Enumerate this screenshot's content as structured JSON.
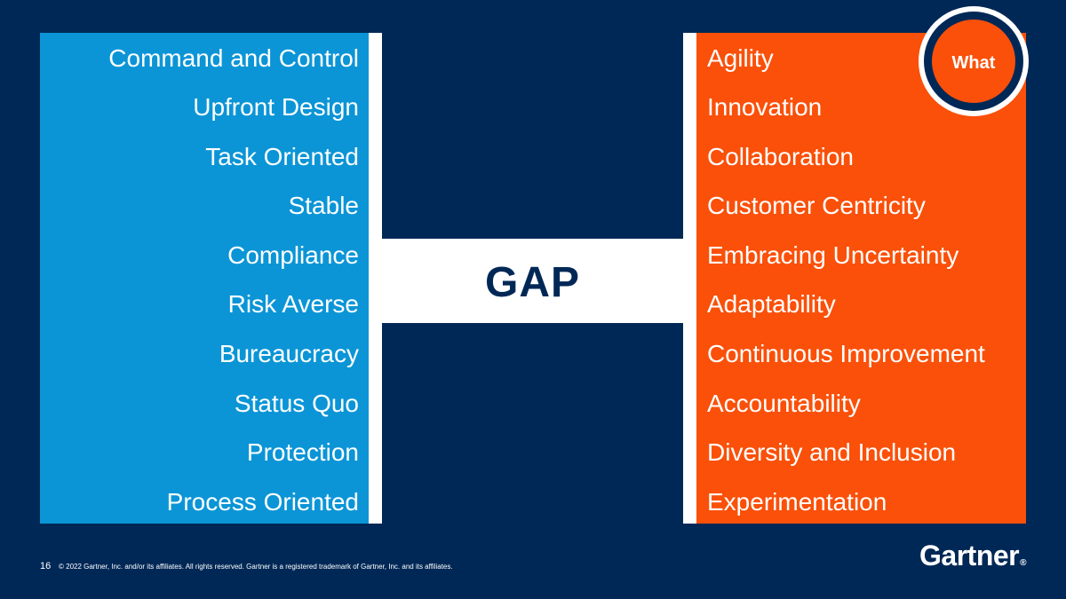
{
  "left_column": {
    "items": [
      "Command and Control",
      "Upfront Design",
      "Task Oriented",
      "Stable",
      "Compliance",
      "Risk Averse",
      "Bureaucracy",
      "Status Quo",
      "Protection",
      "Process Oriented"
    ]
  },
  "right_column": {
    "items": [
      "Agility",
      "Innovation",
      "Collaboration",
      "Customer Centricity",
      "Embracing Uncertainty",
      "Adaptability",
      "Continuous Improvement",
      "Accountability",
      "Diversity and Inclusion",
      "Experimentation"
    ]
  },
  "center": {
    "label": "GAP"
  },
  "badge": {
    "label": "What"
  },
  "footer": {
    "page_number": "16",
    "copyright": "© 2022 Gartner, Inc. and/or its affiliates. All rights reserved. Gartner is a registered trademark of Gartner, Inc. and its affiliates."
  },
  "logo": {
    "text": "Gartner",
    "mark": "®"
  },
  "colors": {
    "background": "#002856",
    "left_panel": "#0b95d6",
    "right_panel": "#fa5009",
    "divider": "#ffffff"
  }
}
